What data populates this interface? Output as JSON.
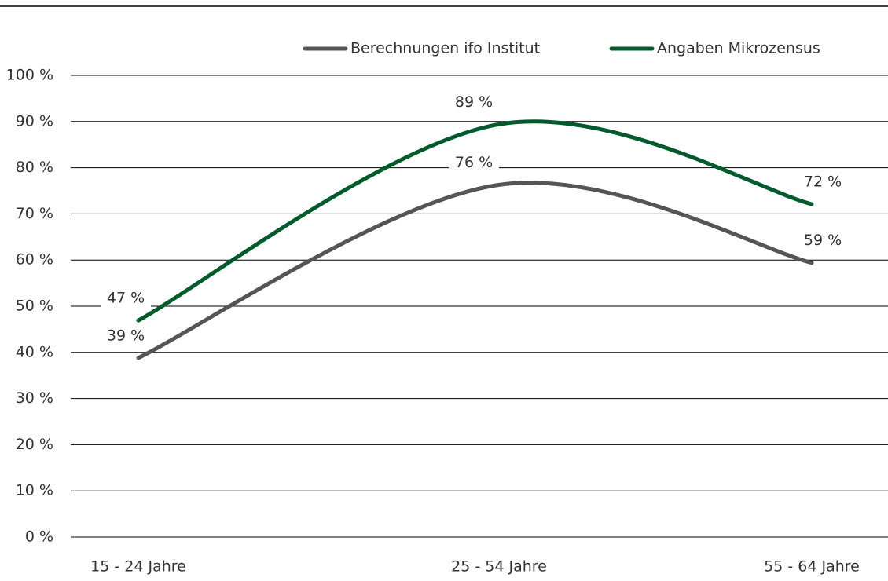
{
  "chart_data": {
    "type": "line",
    "categories": [
      "15 - 24 Jahre",
      "25 - 54 Jahre",
      "55 - 64 Jahre"
    ],
    "series": [
      {
        "name": "Berechnungen ifo Institut",
        "color": "#555555",
        "values": [
          38.8,
          76.3,
          59.4
        ],
        "value_labels": [
          "39 %",
          "76 %",
          "59 %"
        ]
      },
      {
        "name": "Angaben Mikrozensus",
        "color": "#005a2b",
        "values": [
          46.9,
          89.4,
          72.1
        ],
        "value_labels": [
          "47 %",
          "89 %",
          "72 %"
        ]
      }
    ],
    "ylim": [
      0,
      100
    ],
    "yticks": [
      {
        "value": 0,
        "label": "0 %"
      },
      {
        "value": 10,
        "label": "10 %"
      },
      {
        "value": 20,
        "label": "20 %"
      },
      {
        "value": 30,
        "label": "30 %"
      },
      {
        "value": 40,
        "label": "40 %"
      },
      {
        "value": 50,
        "label": "50 %"
      },
      {
        "value": 60,
        "label": "60 %"
      },
      {
        "value": 70,
        "label": "70 %"
      },
      {
        "value": 80,
        "label": "80 %"
      },
      {
        "value": 90,
        "label": "90 %"
      },
      {
        "value": 100,
        "label": "100 %"
      }
    ],
    "grid": true,
    "legend": "top"
  }
}
